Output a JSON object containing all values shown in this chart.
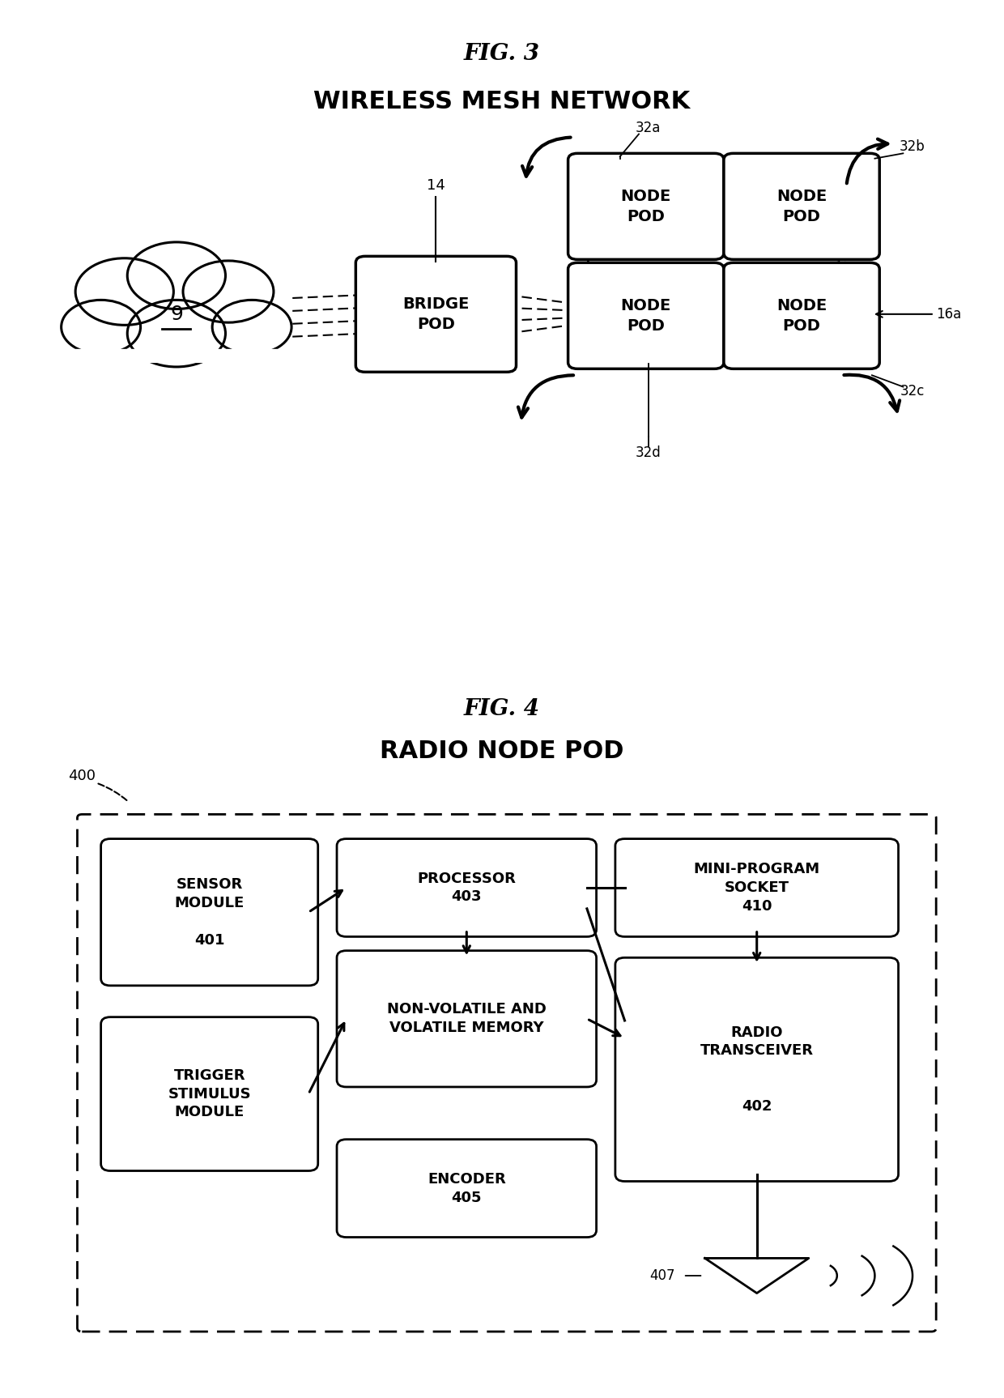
{
  "fig3_title": "FIG. 3",
  "fig3_subtitle": "WIRELESS MESH NETWORK",
  "fig4_title": "FIG. 4",
  "fig4_subtitle": "RADIO NODE POD",
  "background_color": "#ffffff",
  "box_color": "#000000",
  "text_color": "#000000"
}
